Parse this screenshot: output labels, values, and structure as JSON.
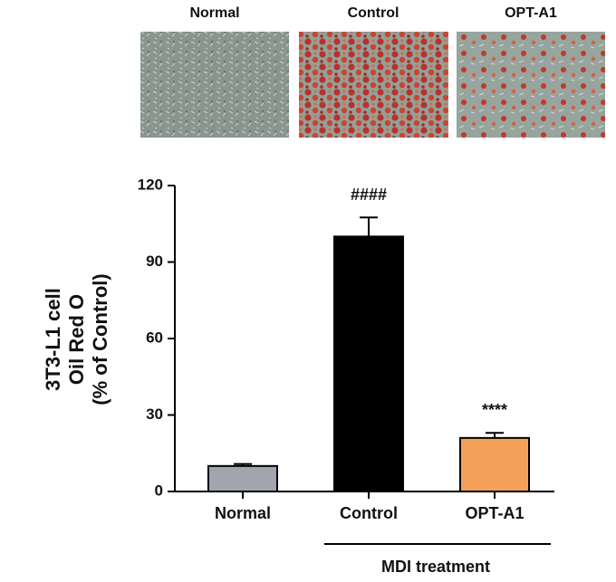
{
  "chart_data": {
    "type": "bar",
    "categories": [
      "Normal",
      "Control",
      "OPT-A1"
    ],
    "values": [
      10,
      100,
      21
    ],
    "errors": [
      0.8,
      7.5,
      2
    ],
    "colors": [
      "#a2a5ad",
      "#000000",
      "#f5a05a"
    ],
    "bar_labels": [
      null,
      "####",
      "****"
    ],
    "ylabel": [
      "3T3-L1 cell",
      "Oil Red O",
      "(% of Control)"
    ],
    "group_label": "MDI treatment",
    "ylim": [
      0,
      120
    ],
    "yticks": [
      0,
      30,
      60,
      90,
      120
    ],
    "grid": false
  }
}
